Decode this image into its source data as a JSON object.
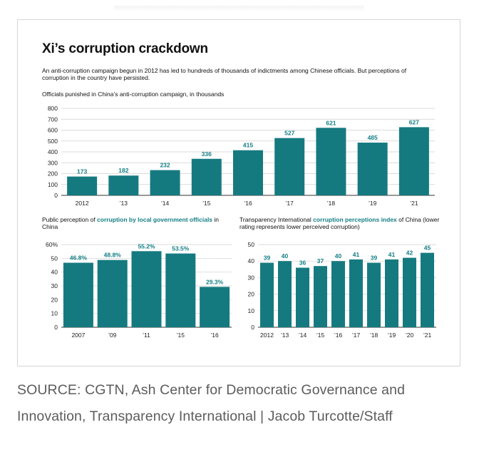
{
  "title": "Xi’s corruption crackdown",
  "subtitle": "An anti-corruption campaign begun in 2012 has led to hundreds of thousands of indictments among Chinese officials. But perceptions of corruption in the country have persisted.",
  "colors": {
    "bar": "#157a80",
    "accent_text": "#137f85"
  },
  "chart_data": [
    {
      "type": "bar",
      "title": "Officials punished in China’s anti-corruption campaign, in thousands",
      "categories": [
        "2012",
        "’13",
        "’14",
        "’15",
        "’16",
        "’17",
        "’18",
        "’19",
        "’21"
      ],
      "values": [
        173,
        182,
        232,
        336,
        415,
        527,
        621,
        485,
        627
      ],
      "value_labels": [
        "173",
        "182",
        "232",
        "336",
        "415",
        "527",
        "621",
        "485",
        "627"
      ],
      "yticks": [
        "0",
        "100",
        "200",
        "300",
        "400",
        "500",
        "600",
        "700",
        "800"
      ],
      "ylim": [
        0,
        800
      ],
      "grid": true
    },
    {
      "type": "bar",
      "title_parts": {
        "pre": "Public perception of ",
        "highlight": "corruption by local government officials",
        "post": " in China"
      },
      "categories": [
        "2007",
        "’09",
        "’11",
        "’15",
        "’16"
      ],
      "values": [
        46.8,
        48.8,
        55.2,
        53.5,
        29.3
      ],
      "value_labels": [
        "46.8%",
        "48.8%",
        "55.2%",
        "53.5%",
        "29.3%"
      ],
      "yticks": [
        "0",
        "10",
        "20",
        "30",
        "40",
        "50",
        "60%"
      ],
      "ylim": [
        0,
        60
      ],
      "grid": true
    },
    {
      "type": "bar",
      "title_parts": {
        "pre": "Transparency International ",
        "highlight": "corruption perceptions index",
        "post": " of China (lower rating represents lower perceived corruption)"
      },
      "categories": [
        "2012",
        "’13",
        "’14",
        "’15",
        "’16",
        "’17",
        "’18",
        "’19",
        "’20",
        "’21"
      ],
      "values": [
        39,
        40,
        36,
        37,
        40,
        41,
        39,
        41,
        42,
        45
      ],
      "value_labels": [
        "39",
        "40",
        "36",
        "37",
        "40",
        "41",
        "39",
        "41",
        "42",
        "45"
      ],
      "yticks": [
        "0",
        "10",
        "20",
        "30",
        "40",
        "50"
      ],
      "ylim": [
        0,
        50
      ],
      "grid": true
    }
  ],
  "source": "SOURCE: CGTN, Ash Center for Democratic Governance and Innovation, Transparency International | Jacob Turcotte/Staff"
}
